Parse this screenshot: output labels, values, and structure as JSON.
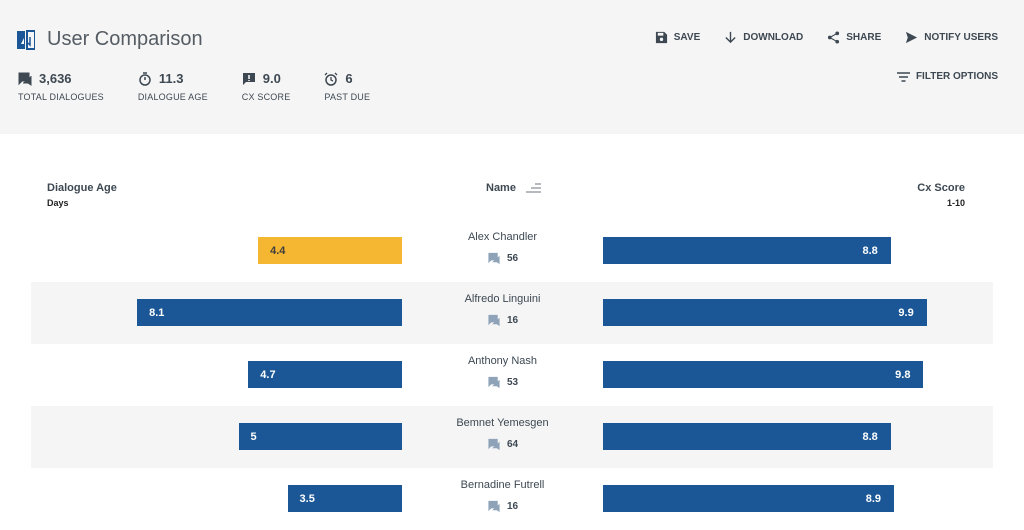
{
  "header": {
    "title": "User Comparison",
    "stats": [
      {
        "value": "3,636",
        "label": "TOTAL DIALOGUES",
        "icon": "chat-icon"
      },
      {
        "value": "11.3",
        "label": "DIALOGUE AGE",
        "icon": "stopwatch-icon"
      },
      {
        "value": "9.0",
        "label": "CX SCORE",
        "icon": "feedback-icon"
      },
      {
        "value": "6",
        "label": "PAST DUE",
        "icon": "alarm-icon"
      }
    ],
    "actions": [
      {
        "label": "SAVE",
        "icon": "save-icon"
      },
      {
        "label": "DOWNLOAD",
        "icon": "download-icon"
      },
      {
        "label": "SHARE",
        "icon": "share-icon"
      },
      {
        "label": "NOTIFY USERS",
        "icon": "send-icon"
      }
    ],
    "filter_label": "FILTER OPTIONS"
  },
  "columns": {
    "left": {
      "title": "Dialogue Age",
      "sub": "Days"
    },
    "center": {
      "title": "Name"
    },
    "right": {
      "title": "Cx Score",
      "sub": "1-10"
    }
  },
  "colors": {
    "bar": "#1b5796",
    "highlight": "#f5b731"
  },
  "rows": [
    {
      "name": "Alex Chandler",
      "dialogues": "56",
      "age": 4.4,
      "age_label": "4.4",
      "cx": 8.8,
      "cx_label": "8.8",
      "highlight": true
    },
    {
      "name": "Alfredo Linguini",
      "dialogues": "16",
      "age": 8.1,
      "age_label": "8.1",
      "cx": 9.9,
      "cx_label": "9.9"
    },
    {
      "name": "Anthony Nash",
      "dialogues": "53",
      "age": 4.7,
      "age_label": "4.7",
      "cx": 9.8,
      "cx_label": "9.8"
    },
    {
      "name": "Bemnet Yemesgen",
      "dialogues": "64",
      "age": 5,
      "age_label": "5",
      "cx": 8.8,
      "cx_label": "8.8"
    },
    {
      "name": "Bernadine Futrell",
      "dialogues": "16",
      "age": 3.5,
      "age_label": "3.5",
      "cx": 8.9,
      "cx_label": "8.9"
    }
  ]
}
